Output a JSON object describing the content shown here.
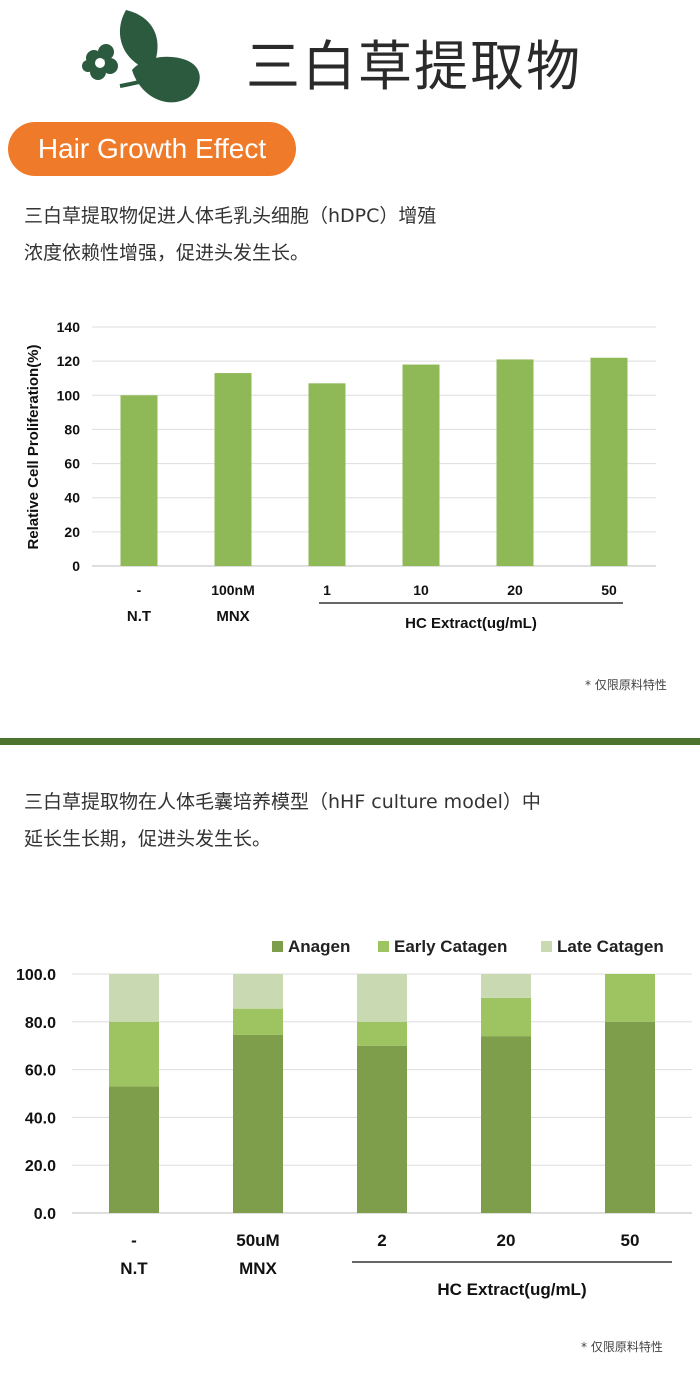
{
  "header": {
    "title": "三白草提取物",
    "badge": "Hair Growth Effect",
    "logo_icon": "leaf-flower-logo"
  },
  "section1": {
    "desc_lines": [
      "三白草提取物促进人体毛乳头细胞（hDPC）增殖",
      "浓度依赖性增强，促进头发生长。"
    ],
    "note": "* 仅限原料特性"
  },
  "section2": {
    "desc_lines": [
      "三白草提取物在人体毛囊培养模型（hHF culture model）中",
      "延长生长期，促进头发生长。"
    ],
    "note": "* 仅限原料特性"
  },
  "colors": {
    "accent": "#ef7b2a",
    "bar": "#8fb957",
    "divider": "#4c742e",
    "anagen": "#7f9e4b",
    "early_catagen": "#9ec462",
    "late_catagen": "#c9d9b2"
  },
  "chart_data": [
    {
      "type": "bar",
      "ylabel": "Relative Cell Proliferation(%)",
      "ylim": [
        0,
        140
      ],
      "yticks": [
        0,
        20,
        40,
        60,
        80,
        100,
        120,
        140
      ],
      "categories": [
        "-",
        "100nM",
        "1",
        "10",
        "20",
        "50"
      ],
      "group_labels": [
        {
          "label": "N.T",
          "category": "-"
        },
        {
          "label": "MNX",
          "category": "100nM"
        },
        {
          "label": "HC Extract(ug/mL)",
          "categories": [
            "1",
            "10",
            "20",
            "50"
          ]
        }
      ],
      "values": [
        100,
        113,
        107,
        118,
        121,
        122
      ],
      "grid": true
    },
    {
      "type": "bar",
      "stacked": true,
      "ylim": [
        0,
        100
      ],
      "yticks": [
        "0.0",
        "20.0",
        "40.0",
        "60.0",
        "80.0",
        "100.0"
      ],
      "categories": [
        "-",
        "50uM",
        "2",
        "20",
        "50"
      ],
      "group_labels": [
        {
          "label": "N.T",
          "category": "-"
        },
        {
          "label": "MNX",
          "category": "50uM"
        },
        {
          "label": "HC Extract(ug/mL)",
          "categories": [
            "2",
            "20",
            "50"
          ]
        }
      ],
      "legend": "top-right",
      "series": [
        {
          "name": "Anagen",
          "values": [
            53,
            74.5,
            70,
            74,
            80
          ]
        },
        {
          "name": "Early Catagen",
          "values": [
            27,
            11,
            10,
            16,
            20
          ]
        },
        {
          "name": "Late Catagen",
          "values": [
            20,
            14.5,
            20,
            10,
            0
          ]
        }
      ],
      "grid": true
    }
  ]
}
